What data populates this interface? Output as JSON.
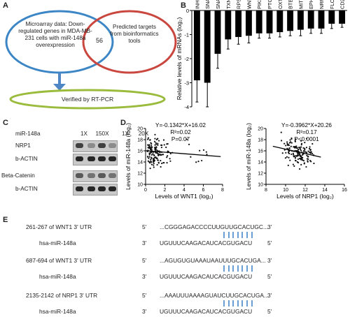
{
  "panels": {
    "A": "A",
    "B": "B",
    "C": "C",
    "D": "D",
    "E": "E"
  },
  "panel_a": {
    "left_text": "Microarray data: Down-regulated genes in MDA-MB-231 cells with miR-148a overexpression",
    "overlap": "56",
    "right_text": "Predicted targets from bioinformatics tools",
    "bottom_text": "Verified by RT-PCR",
    "colors": {
      "left": "#3d86c6",
      "right": "#c9473f",
      "bottom": "#9abb3c",
      "arrow": "#4f86c6"
    }
  },
  "panel_b": {
    "chart_data": {
      "type": "bar",
      "categories": [
        "INHBB",
        "SNAP91-1",
        "SNAP91-2",
        "TXNIP",
        "RPS6KA2",
        "WNT1",
        "PIK3C2B",
        "PTGS1",
        "OXTR",
        "BTBD3",
        "MITF",
        "EPHA4",
        "NRP1",
        "FLOT2",
        "CD247"
      ],
      "values": [
        -2.9,
        -3.0,
        -1.8,
        -1.2,
        -1.1,
        -1.05,
        -0.95,
        -0.95,
        -0.9,
        -0.85,
        -0.8,
        -0.75,
        -0.75,
        -0.55,
        -0.55
      ],
      "errors": [
        0.9,
        1.0,
        0.6,
        0.4,
        0.3,
        0.3,
        0.2,
        0.2,
        0.2,
        0.2,
        0.25,
        0.2,
        0.2,
        0.2,
        0.15
      ],
      "ylabel": "Relative levels of mRNAs (log₂)",
      "ylim": [
        -4,
        0
      ],
      "yticks": [
        "-4",
        "-3",
        "-2",
        "-1",
        "0"
      ]
    }
  },
  "panel_c": {
    "header_label": "miR-148a",
    "lanes": [
      "1X",
      "150X",
      "1X",
      "20X"
    ],
    "rows": [
      "NRP1",
      "b-ACTIN",
      "Beta-Catenin",
      "b-ACTIN"
    ]
  },
  "panel_d": {
    "chart_data": [
      {
        "type": "scatter",
        "equation": "Y=-0.1342*X+16.02",
        "r2": "R²=0.02",
        "p": "P=0.07",
        "xlabel": "Levels of WNT1 (log₂)",
        "ylabel": "Levels of miR-148a (log₂)",
        "xlim": [
          0,
          8
        ],
        "ylim": [
          10,
          20
        ],
        "xticks": [
          "0",
          "2",
          "4",
          "6",
          "8"
        ],
        "yticks": [
          "10",
          "12",
          "14",
          "16",
          "18",
          "20"
        ],
        "fit": {
          "slope": -0.1342,
          "intercept": 16.02
        }
      },
      {
        "type": "scatter",
        "equation": "Y=-0.3962*X+20.26",
        "r2": "R²=0.17",
        "p": "P<0.0001",
        "xlabel": "Levels of NRP1 (log₂)",
        "ylabel": "Levels of miR-148a (log₂)",
        "xlim": [
          8,
          16
        ],
        "ylim": [
          10,
          20
        ],
        "xticks": [
          "8",
          "10",
          "12",
          "14",
          "16"
        ],
        "yticks": [
          "10",
          "12",
          "14",
          "16",
          "18",
          "20"
        ],
        "fit": {
          "slope": -0.3962,
          "intercept": 20.26
        }
      }
    ]
  },
  "panel_e": {
    "rows": [
      {
        "label": "261-267 of WNT1 3' UTR",
        "left": "5'",
        "seq": "...CGGGAGACCCCUUGUUGCACUGC...",
        "right": "3'"
      },
      {
        "label": "hsa-miR-148a",
        "left": "3'",
        "seq": "UGUUUCAAGACAUCACGUGACU",
        "right": "5'"
      },
      {
        "label": "687-694 of WNT1 3' UTR",
        "left": "5'",
        "seq": "...AGUGUGUAAAUAAUUUGCACUGA...",
        "right": "3'"
      },
      {
        "label": "hsa-miR-148a",
        "left": "3'",
        "seq": "UGUUUCAAGACAUCACGUGACU",
        "right": "5'"
      },
      {
        "label": "2135-2142 of NRP1 3' UTR",
        "left": "5'",
        "seq": "...AAAUUUAAAAGUAUCUUGCACUGA...",
        "right": "3'"
      },
      {
        "label": "hsa-miR-148a",
        "left": "3'",
        "seq": "UGUUUCAAGACAUCACGUGACU",
        "right": "5'"
      }
    ],
    "pair_color": "#6a9fd6"
  }
}
